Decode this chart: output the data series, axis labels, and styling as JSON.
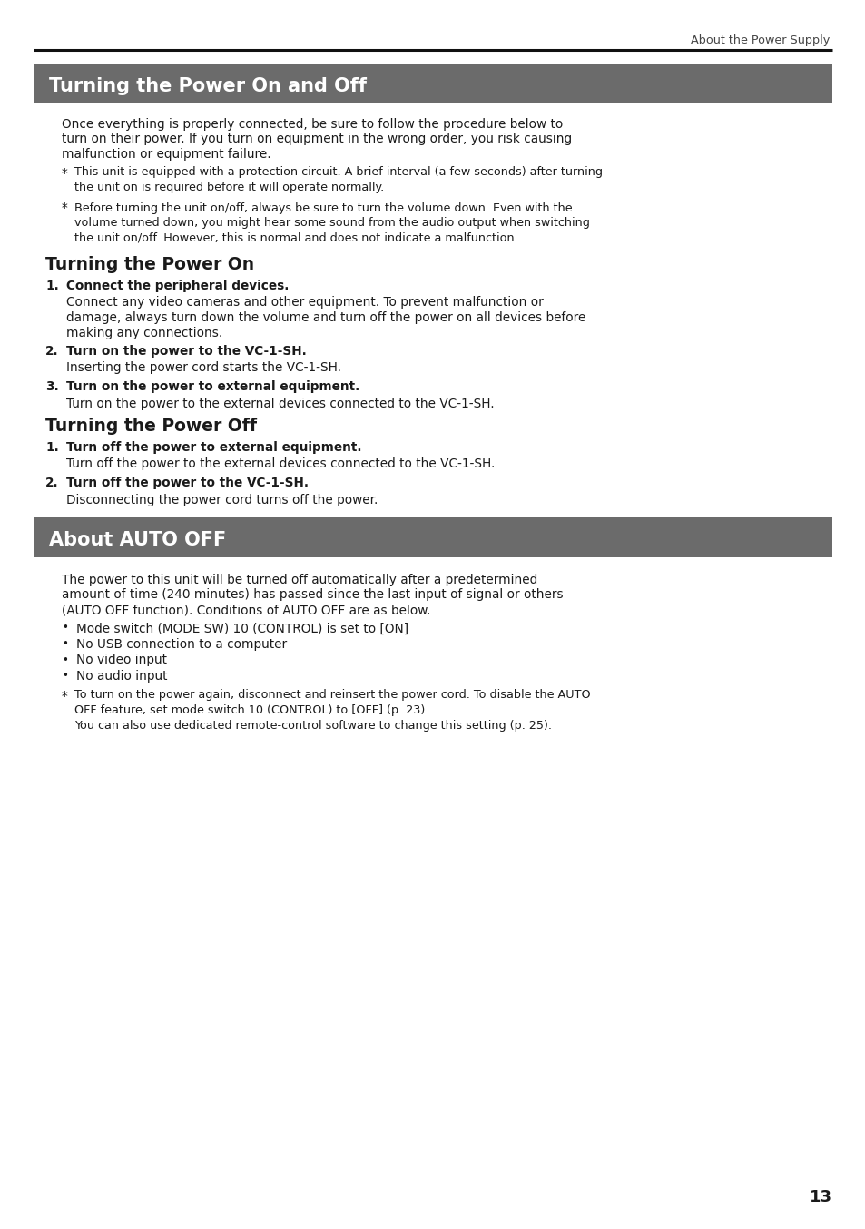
{
  "page_bg": "#ffffff",
  "header_text": "About the Power Supply",
  "header_text_color": "#444444",
  "header_line_color": "#111111",
  "section1_title": "Turning the Power On and Off",
  "section1_bg": "#6b6b6b",
  "section1_text_color": "#ffffff",
  "section2_title": "About AUTO OFF",
  "section2_bg": "#6b6b6b",
  "section2_text_color": "#ffffff",
  "subsection1": "Turning the Power On",
  "subsection2": "Turning the Power Off",
  "body_text_color": "#1a1a1a",
  "page_number": "13",
  "intro_lines": [
    "Once everything is properly connected, be sure to follow the procedure below to",
    "turn on their power. If you turn on equipment in the wrong order, you risk causing",
    "malfunction or equipment failure."
  ],
  "note1_lines": [
    "This unit is equipped with a protection circuit. A brief interval (a few seconds) after turning",
    "the unit on is required before it will operate normally."
  ],
  "note2_lines": [
    "Before turning the unit on/off, always be sure to turn the volume down. Even with the",
    "volume turned down, you might hear some sound from the audio output when switching",
    "the unit on/off. However, this is normal and does not indicate a malfunction."
  ],
  "power_on_step1_title": "Connect the peripheral devices.",
  "power_on_step1_body": [
    "Connect any video cameras and other equipment. To prevent malfunction or",
    "damage, always turn down the volume and turn off the power on all devices before",
    "making any connections."
  ],
  "power_on_step2_title": "Turn on the power to the VC-1-SH.",
  "power_on_step2_body": "Inserting the power cord starts the VC-1-SH.",
  "power_on_step3_title": "Turn on the power to external equipment.",
  "power_on_step3_body": "Turn on the power to the external devices connected to the VC-1-SH.",
  "power_off_step1_title": "Turn off the power to external equipment.",
  "power_off_step1_body": "Turn off the power to the external devices connected to the VC-1-SH.",
  "power_off_step2_title": "Turn off the power to the VC-1-SH.",
  "power_off_step2_body": "Disconnecting the power cord turns off the power.",
  "auto_off_intro_lines": [
    "The power to this unit will be turned off automatically after a predetermined",
    "amount of time (240 minutes) has passed since the last input of signal or others",
    "(AUTO OFF function). Conditions of AUTO OFF are as below."
  ],
  "auto_off_bullets": [
    "Mode switch (MODE SW) 10 (CONTROL) is set to [ON]",
    "No USB connection to a computer",
    "No video input",
    "No audio input"
  ],
  "auto_off_note_lines": [
    "To turn on the power again, disconnect and reinsert the power cord. To disable the AUTO",
    "OFF feature, set mode switch 10 (CONTROL) to [OFF] (p. 23).",
    "You can also use dedicated remote-control software to change this setting (p. 25)."
  ]
}
